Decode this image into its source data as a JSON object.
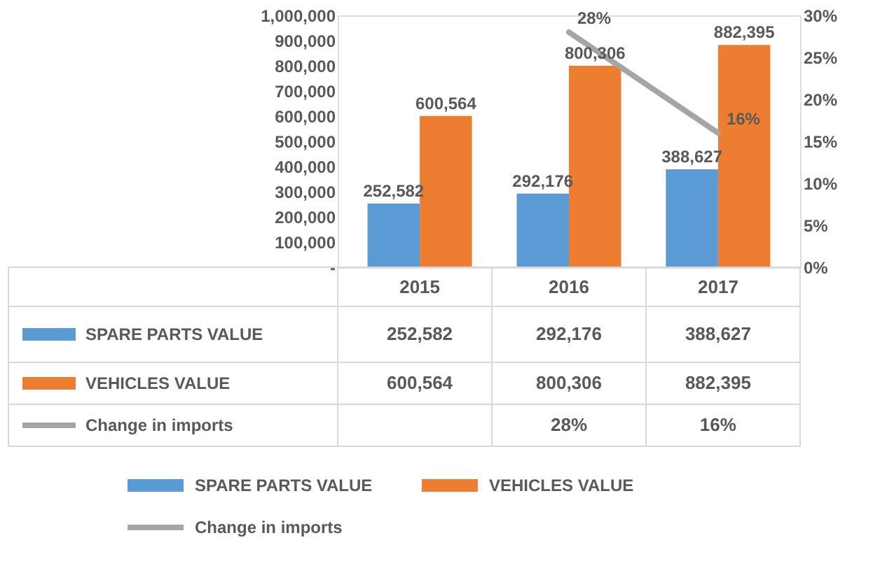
{
  "chart_data": {
    "type": "bar",
    "categories": [
      "2015",
      "2016",
      "2017"
    ],
    "series": [
      {
        "name": "SPARE PARTS VALUE",
        "color": "#5b9bd5",
        "values": [
          252582,
          292176,
          388627
        ],
        "value_labels": [
          "252,582",
          "292,176",
          "388,627"
        ]
      },
      {
        "name": "VEHICLES VALUE",
        "color": "#ed7d31",
        "values": [
          600564,
          800306,
          882395
        ],
        "value_labels": [
          "600,564",
          "800,306",
          "882,395"
        ]
      },
      {
        "name": "Change in imports",
        "type": "line",
        "axis": "y2",
        "color": "#a5a5a5",
        "values": [
          null,
          28,
          16
        ],
        "value_labels": [
          null,
          "28%",
          "16%"
        ]
      }
    ],
    "ylim": [
      0,
      1000000
    ],
    "yticks": [
      {
        "value": 0,
        "label": "-"
      },
      {
        "value": 100000,
        "label": "100,000"
      },
      {
        "value": 200000,
        "label": "200,000"
      },
      {
        "value": 300000,
        "label": "300,000"
      },
      {
        "value": 400000,
        "label": "400,000"
      },
      {
        "value": 500000,
        "label": "500,000"
      },
      {
        "value": 600000,
        "label": "600,000"
      },
      {
        "value": 700000,
        "label": "700,000"
      },
      {
        "value": 800000,
        "label": "800,000"
      },
      {
        "value": 900000,
        "label": "900,000"
      },
      {
        "value": 1000000,
        "label": "1,000,000"
      }
    ],
    "y2lim": [
      0,
      30
    ],
    "y2ticks": [
      {
        "value": 0,
        "label": "0%"
      },
      {
        "value": 5,
        "label": "5%"
      },
      {
        "value": 10,
        "label": "10%"
      },
      {
        "value": 15,
        "label": "15%"
      },
      {
        "value": 20,
        "label": "20%"
      },
      {
        "value": 25,
        "label": "25%"
      },
      {
        "value": 30,
        "label": "30%"
      }
    ],
    "grid": false,
    "legend": "bottom",
    "line_style": "solid"
  }
}
